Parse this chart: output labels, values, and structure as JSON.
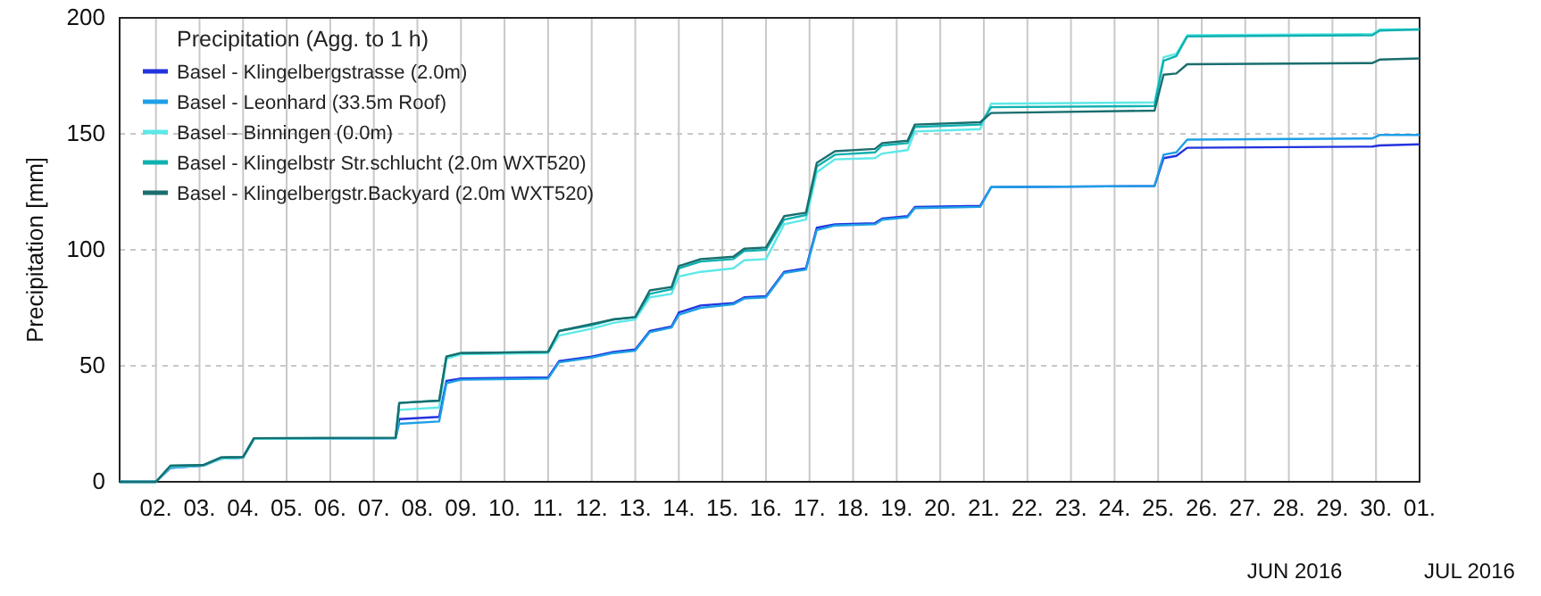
{
  "chart_data": {
    "type": "line",
    "ylabel": "Precipitation [mm]",
    "legend_title": "Precipitation (Agg. to 1 h)",
    "legend": "top left",
    "grid": true,
    "xlim": [
      "2016-06-01T04:00",
      "2016-07-01T00:00"
    ],
    "ylim": [
      0,
      200
    ],
    "yticks": [
      0,
      50,
      100,
      150,
      200
    ],
    "xticks": [
      {
        "value": "2016-06-02",
        "label": "02."
      },
      {
        "value": "2016-06-03",
        "label": "03."
      },
      {
        "value": "2016-06-04",
        "label": "04."
      },
      {
        "value": "2016-06-05",
        "label": "05."
      },
      {
        "value": "2016-06-06",
        "label": "06."
      },
      {
        "value": "2016-06-07",
        "label": "07."
      },
      {
        "value": "2016-06-08",
        "label": "08."
      },
      {
        "value": "2016-06-09",
        "label": "09."
      },
      {
        "value": "2016-06-10",
        "label": "10."
      },
      {
        "value": "2016-06-11",
        "label": "11."
      },
      {
        "value": "2016-06-12",
        "label": "12."
      },
      {
        "value": "2016-06-13",
        "label": "13."
      },
      {
        "value": "2016-06-14",
        "label": "14."
      },
      {
        "value": "2016-06-15",
        "label": "15."
      },
      {
        "value": "2016-06-16",
        "label": "16."
      },
      {
        "value": "2016-06-17",
        "label": "17."
      },
      {
        "value": "2016-06-18",
        "label": "18."
      },
      {
        "value": "2016-06-19",
        "label": "19."
      },
      {
        "value": "2016-06-20",
        "label": "20."
      },
      {
        "value": "2016-06-21",
        "label": "21."
      },
      {
        "value": "2016-06-22",
        "label": "22."
      },
      {
        "value": "2016-06-23",
        "label": "23."
      },
      {
        "value": "2016-06-24",
        "label": "24."
      },
      {
        "value": "2016-06-25",
        "label": "25."
      },
      {
        "value": "2016-06-26",
        "label": "26."
      },
      {
        "value": "2016-06-27",
        "label": "27."
      },
      {
        "value": "2016-06-28",
        "label": "28."
      },
      {
        "value": "2016-06-29",
        "label": "29."
      },
      {
        "value": "2016-06-30",
        "label": "30."
      },
      {
        "value": "2016-07-01",
        "label": "01."
      }
    ],
    "annotations": [
      "JUN 2016",
      "JUL 2016"
    ],
    "x": [
      "2016-06-01T04:00",
      "2016-06-02T00:00",
      "2016-06-02T08:00",
      "2016-06-03T02:00",
      "2016-06-03T12:00",
      "2016-06-04T00:00",
      "2016-06-04T06:00",
      "2016-06-07T12:00",
      "2016-06-07T14:00",
      "2016-06-08T12:00",
      "2016-06-08T16:00",
      "2016-06-09T00:00",
      "2016-06-11T00:00",
      "2016-06-11T06:00",
      "2016-06-12T00:00",
      "2016-06-12T12:00",
      "2016-06-13T00:00",
      "2016-06-13T08:00",
      "2016-06-13T20:00",
      "2016-06-14T00:00",
      "2016-06-14T12:00",
      "2016-06-15T06:00",
      "2016-06-15T12:00",
      "2016-06-16T00:00",
      "2016-06-16T10:00",
      "2016-06-16T22:00",
      "2016-06-17T04:00",
      "2016-06-17T14:00",
      "2016-06-18T12:00",
      "2016-06-18T16:00",
      "2016-06-19T06:00",
      "2016-06-19T10:00",
      "2016-06-20T22:00",
      "2016-06-21T04:00",
      "2016-06-24T22:00",
      "2016-06-25T03:00",
      "2016-06-25T10:00",
      "2016-06-25T16:00",
      "2016-06-29T22:00",
      "2016-06-30T02:00",
      "2016-07-01T00:00"
    ],
    "series": [
      {
        "name": "Basel - Klingelbergstrasse (2.0m)",
        "color": "#2233dd",
        "values": [
          0,
          0,
          6,
          7,
          10,
          10.5,
          18.5,
          18.8,
          27,
          28,
          43.5,
          44.5,
          45,
          52,
          54,
          56,
          57,
          65,
          67,
          73,
          76,
          77,
          79.5,
          80,
          90.5,
          92,
          109.5,
          111,
          111.5,
          113.5,
          114.5,
          118.5,
          119,
          127,
          127.5,
          139.5,
          140.5,
          144,
          144.5,
          145,
          145.5
        ]
      },
      {
        "name": "Basel - Leonhard (33.5m Roof)",
        "color": "#1e9fe6",
        "values": [
          0,
          0,
          6,
          7,
          10,
          10.5,
          18.5,
          18.8,
          25,
          26,
          42.5,
          44,
          44.5,
          51.5,
          53.5,
          55.5,
          56.5,
          64.5,
          66.5,
          72,
          75,
          76.5,
          79,
          79.5,
          90,
          91.5,
          108.5,
          110.5,
          111,
          113,
          114,
          118,
          118.5,
          127,
          127.5,
          141,
          142,
          147.5,
          148,
          149.5,
          149.5
        ]
      },
      {
        "name": "Basel - Binningen (0.0m)",
        "color": "#5ee8e8",
        "values": [
          0,
          0,
          6.5,
          7,
          10,
          10.5,
          18.5,
          18.8,
          31,
          32,
          53,
          55,
          55.5,
          63,
          66,
          68.5,
          70,
          79.5,
          81,
          88.5,
          90.5,
          92,
          95.5,
          96,
          111,
          113,
          133.5,
          139,
          139.5,
          141.5,
          143,
          151,
          152,
          163,
          163.5,
          183,
          184.5,
          192.5,
          193,
          195,
          195
        ]
      },
      {
        "name": "Basel - Klingelbstr Str.schlucht (2.0m WXT520)",
        "color": "#10b0b0",
        "values": [
          0,
          0,
          6.9,
          7.2,
          10.5,
          10.7,
          18.8,
          19,
          34,
          35,
          54,
          55.5,
          56,
          65,
          67.5,
          70,
          71,
          81,
          83,
          92,
          95,
          96,
          99.5,
          100,
          113,
          115,
          136,
          141,
          142,
          145,
          146,
          153,
          154,
          161.5,
          162,
          181.5,
          183.5,
          192,
          192.5,
          194.5,
          195
        ]
      },
      {
        "name": "Basel - Klingelbergstr.Backyard (2.0m WXT520)",
        "color": "#1a6e6e",
        "values": [
          0,
          0,
          6.9,
          7.2,
          10.5,
          10.7,
          18.8,
          19,
          34,
          35,
          54,
          55.5,
          56,
          65,
          68,
          70,
          71,
          82.5,
          84,
          93,
          96,
          97,
          100.5,
          101,
          114.5,
          116,
          137.5,
          142.5,
          143.5,
          146,
          147,
          154,
          155,
          159,
          160,
          175.5,
          176,
          180,
          180.5,
          182,
          182.5
        ]
      }
    ]
  }
}
